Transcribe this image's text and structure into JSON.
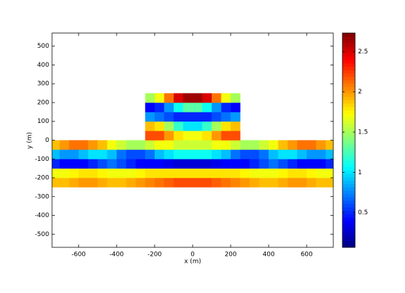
{
  "chart_data": {
    "type": "heatmap",
    "colormap": "jet",
    "xlabel": "x (m)",
    "ylabel": "y (m)",
    "xlim": [
      -740,
      740
    ],
    "ylim": [
      -570,
      570
    ],
    "xticks": [
      -600,
      -400,
      -200,
      0,
      200,
      400,
      600
    ],
    "yticks": [
      -500,
      -400,
      -300,
      -200,
      -100,
      0,
      100,
      200,
      300,
      400,
      500
    ],
    "x_edges": [
      -740,
      -700,
      -650,
      -600,
      -550,
      -500,
      -450,
      -400,
      -350,
      -300,
      -250,
      -200,
      -150,
      -100,
      -50,
      0,
      50,
      100,
      150,
      200,
      250,
      300,
      350,
      400,
      450,
      500,
      550,
      600,
      650,
      700,
      740
    ],
    "y_edges": [
      -250,
      -200,
      -150,
      -100,
      -50,
      0,
      50,
      100,
      150,
      200,
      250
    ],
    "z": [
      [
        1.9,
        1.9,
        1.95,
        2.0,
        2.0,
        1.95,
        1.9,
        1.9,
        1.95,
        2.0,
        2.05,
        2.1,
        2.15,
        2.2,
        2.2,
        2.2,
        2.2,
        2.15,
        2.1,
        2.05,
        2.0,
        1.95,
        1.9,
        1.9,
        1.95,
        2.0,
        2.0,
        1.95,
        1.9,
        1.9
      ],
      [
        1.7,
        1.7,
        1.75,
        1.8,
        1.8,
        1.75,
        1.7,
        1.7,
        1.7,
        1.75,
        1.8,
        1.8,
        1.8,
        1.8,
        1.8,
        1.8,
        1.8,
        1.8,
        1.8,
        1.8,
        1.75,
        1.7,
        1.7,
        1.7,
        1.75,
        1.8,
        1.8,
        1.75,
        1.7,
        1.7
      ],
      [
        0.5,
        0.4,
        0.4,
        0.4,
        0.5,
        0.6,
        0.7,
        0.6,
        0.5,
        0.4,
        0.4,
        0.4,
        0.35,
        0.3,
        0.3,
        0.3,
        0.3,
        0.35,
        0.4,
        0.4,
        0.4,
        0.5,
        0.6,
        0.7,
        0.6,
        0.5,
        0.4,
        0.4,
        0.4,
        0.5
      ],
      [
        0.9,
        0.8,
        0.8,
        0.9,
        1.0,
        1.0,
        0.9,
        0.7,
        0.6,
        0.6,
        0.7,
        0.9,
        1.0,
        1.1,
        1.1,
        1.1,
        1.1,
        1.0,
        0.9,
        0.7,
        0.6,
        0.6,
        0.7,
        0.9,
        1.0,
        1.0,
        0.9,
        0.8,
        0.8,
        0.9
      ],
      [
        1.9,
        2.0,
        2.1,
        2.1,
        2.0,
        1.9,
        1.7,
        1.6,
        1.5,
        1.5,
        1.6,
        1.7,
        1.7,
        1.6,
        1.6,
        1.6,
        1.6,
        1.7,
        1.7,
        1.6,
        1.5,
        1.5,
        1.6,
        1.7,
        1.9,
        2.0,
        2.1,
        2.1,
        2.0,
        1.9
      ],
      [
        null,
        null,
        null,
        null,
        null,
        null,
        null,
        null,
        null,
        null,
        2.2,
        2.2,
        2.0,
        1.8,
        1.7,
        1.7,
        1.8,
        2.0,
        2.2,
        2.2,
        null,
        null,
        null,
        null,
        null,
        null,
        null,
        null,
        null,
        null
      ],
      [
        null,
        null,
        null,
        null,
        null,
        null,
        null,
        null,
        null,
        null,
        1.9,
        1.8,
        1.5,
        1.2,
        1.0,
        1.0,
        1.2,
        1.5,
        1.8,
        1.9,
        null,
        null,
        null,
        null,
        null,
        null,
        null,
        null,
        null,
        null
      ],
      [
        null,
        null,
        null,
        null,
        null,
        null,
        null,
        null,
        null,
        null,
        0.8,
        0.7,
        0.6,
        0.5,
        0.5,
        0.5,
        0.5,
        0.6,
        0.7,
        0.8,
        null,
        null,
        null,
        null,
        null,
        null,
        null,
        null,
        null,
        null
      ],
      [
        null,
        null,
        null,
        null,
        null,
        null,
        null,
        null,
        null,
        null,
        0.4,
        0.5,
        0.8,
        1.1,
        1.3,
        1.3,
        1.1,
        0.8,
        0.5,
        0.4,
        null,
        null,
        null,
        null,
        null,
        null,
        null,
        null,
        null,
        null
      ],
      [
        null,
        null,
        null,
        null,
        null,
        null,
        null,
        null,
        null,
        null,
        1.5,
        1.7,
        2.1,
        2.5,
        2.65,
        2.65,
        2.5,
        2.1,
        1.7,
        1.5,
        null,
        null,
        null,
        null,
        null,
        null,
        null,
        null,
        null,
        null
      ]
    ],
    "colorbar": {
      "clim": [
        0.07,
        2.73
      ],
      "ticks": [
        0.5,
        1,
        1.5,
        2,
        2.5
      ]
    }
  }
}
